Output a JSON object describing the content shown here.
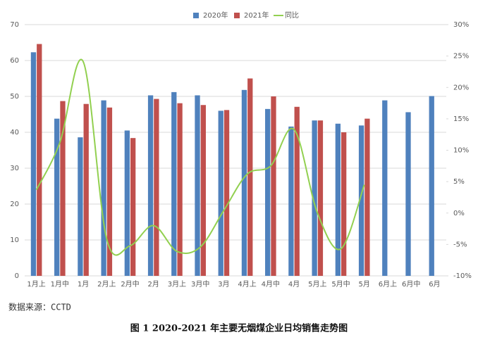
{
  "chart_data": {
    "type": "bar-line",
    "categories": [
      "1月上",
      "1月中",
      "1月",
      "2月上",
      "2月中",
      "2月",
      "3月上",
      "3月中",
      "3月",
      "4月上",
      "4月中",
      "4月",
      "5月上",
      "5月中",
      "5月",
      "6月上",
      "6月中",
      "6月"
    ],
    "series": [
      {
        "name": "2020年",
        "color": "#4f81bd",
        "values": [
          62.3,
          43.8,
          38.6,
          48.9,
          40.5,
          50.3,
          51.2,
          50.3,
          46.0,
          51.8,
          46.5,
          41.6,
          43.3,
          42.4,
          41.9,
          48.9,
          45.6,
          50.1
        ]
      },
      {
        "name": "2021年",
        "color": "#c0504d",
        "values": [
          64.6,
          48.7,
          47.9,
          46.9,
          38.4,
          49.3,
          48.1,
          47.6,
          46.2,
          55.0,
          50.0,
          47.1,
          43.3,
          40.0,
          43.8,
          null,
          null,
          null
        ]
      },
      {
        "name": "同比",
        "color": "#92d050",
        "axis": "y2",
        "values": [
          3.7,
          11.2,
          24.1,
          -4.1,
          -5.2,
          -2.0,
          -6.1,
          -5.4,
          0.4,
          6.2,
          7.5,
          13.3,
          0.0,
          -5.7,
          4.5,
          null,
          null,
          null
        ]
      }
    ],
    "ylim": [
      0,
      70
    ],
    "yticks": [
      0,
      10,
      20,
      30,
      40,
      50,
      60,
      70
    ],
    "y2lim": [
      -10,
      30
    ],
    "y2ticks": [
      {
        "value": -10,
        "label": "-10%"
      },
      {
        "value": -5,
        "label": "-5%"
      },
      {
        "value": 0,
        "label": "0%"
      },
      {
        "value": 5,
        "label": "5%"
      },
      {
        "value": 10,
        "label": "10%"
      },
      {
        "value": 15,
        "label": "15%"
      },
      {
        "value": 20,
        "label": "20%"
      },
      {
        "value": 25,
        "label": "25%"
      },
      {
        "value": 30,
        "label": "30%"
      }
    ],
    "source": "数据来源：CCTD",
    "caption": "图 1 2020-2021 年主要无烟煤企业日均销售走势图"
  }
}
